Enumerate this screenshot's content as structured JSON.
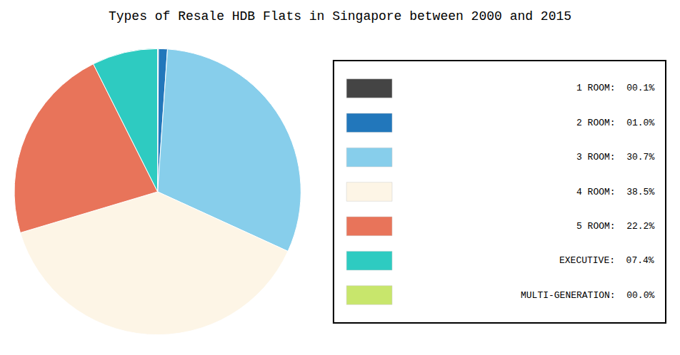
{
  "chart_data": {
    "type": "pie",
    "title": "Types of Resale HDB Flats in Singapore between 2000 and 2015",
    "categories": [
      "1 ROOM:  00.1%",
      "2 ROOM:  01.0%",
      "3 ROOM:  30.7%",
      "4 ROOM:  38.5%",
      "5 ROOM:  22.2%",
      "EXECUTIVE:  07.4%",
      "MULTI-GENERATION:  00.0%"
    ],
    "values": [
      0.1,
      1.0,
      30.7,
      38.5,
      22.2,
      7.4,
      0.0
    ],
    "colors": [
      "#444444",
      "#2277bb",
      "#87ceeb",
      "#fdf5e6",
      "#e8745a",
      "#2ecbc1",
      "#c8e66c"
    ],
    "legend": "right"
  }
}
